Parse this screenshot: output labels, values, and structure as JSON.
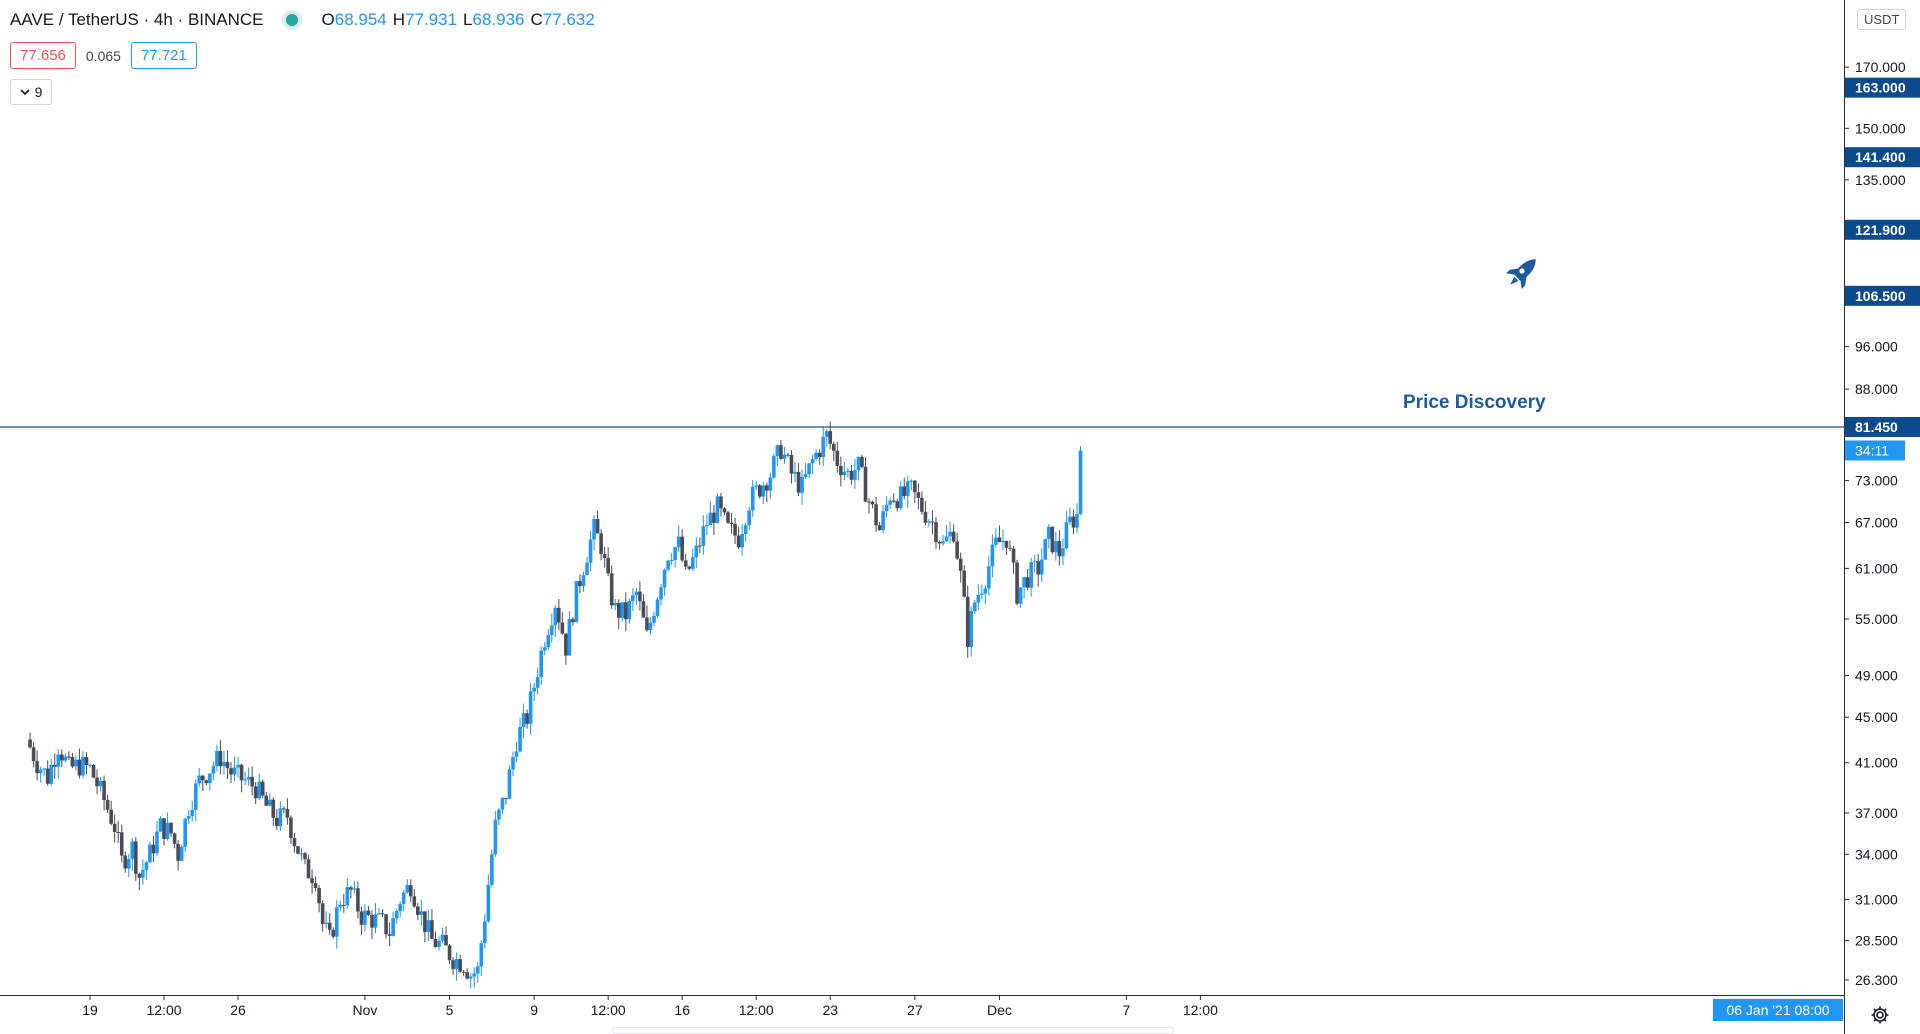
{
  "header": {
    "symbol": "AAVE / TetherUS · 4h · BINANCE",
    "ohlc": [
      {
        "label": "O",
        "value": "68.954"
      },
      {
        "label": "H",
        "value": "77.931"
      },
      {
        "label": "L",
        "value": "68.936"
      },
      {
        "label": "C",
        "value": "77.632"
      }
    ]
  },
  "quote": {
    "sell": "77.656",
    "spread": "0.065",
    "buy": "77.721"
  },
  "indicators_toggle": {
    "count": "9"
  },
  "currency": "USDT",
  "annotation": {
    "text": "Price Discovery",
    "icon": "rocket-icon"
  },
  "settings_icon": "gear-icon",
  "colors": {
    "up": "#2196f3",
    "down": "#4a4c55",
    "label": "#0d4a8c",
    "current": "#2196f3",
    "hline": "#1f4f7e"
  },
  "chart_data": {
    "type": "candlestick",
    "timeframe": "4h",
    "y_scale": "log",
    "ylim": [
      25.5,
      195
    ],
    "y_ticks": [
      {
        "value": 26.3,
        "label": "26.300"
      },
      {
        "value": 28.5,
        "label": "28.500"
      },
      {
        "value": 31,
        "label": "31.000"
      },
      {
        "value": 34,
        "label": "34.000"
      },
      {
        "value": 37,
        "label": "37.000"
      },
      {
        "value": 41,
        "label": "41.000"
      },
      {
        "value": 45,
        "label": "45.000"
      },
      {
        "value": 49,
        "label": "49.000"
      },
      {
        "value": 55,
        "label": "55.000"
      },
      {
        "value": 61,
        "label": "61.000"
      },
      {
        "value": 67,
        "label": "67.000"
      },
      {
        "value": 73,
        "label": "73.000"
      },
      {
        "value": 88,
        "label": "88.000"
      },
      {
        "value": 96,
        "label": "96.000"
      },
      {
        "value": 135,
        "label": "135.000"
      },
      {
        "value": 150,
        "label": "150.000"
      },
      {
        "value": 170,
        "label": "170.000"
      }
    ],
    "price_levels": [
      {
        "value": 163,
        "label": "163.000"
      },
      {
        "value": 141.4,
        "label": "141.400"
      },
      {
        "value": 121.9,
        "label": "121.900"
      },
      {
        "value": 106.5,
        "label": "106.500"
      },
      {
        "value": 81.45,
        "label": "81.450"
      }
    ],
    "horizontal_line": 81.45,
    "countdown": "34:11",
    "countdown_price": 77.632,
    "x_ticks": [
      {
        "date": "2020-10-19",
        "label": "19"
      },
      {
        "date": "2020-10-22T12:00",
        "label": "12:00"
      },
      {
        "date": "2020-10-26",
        "label": "26"
      },
      {
        "date": "2020-11-01",
        "label": "Nov"
      },
      {
        "date": "2020-11-05",
        "label": "5"
      },
      {
        "date": "2020-11-09",
        "label": "9"
      },
      {
        "date": "2020-11-12T12:00",
        "label": "12:00"
      },
      {
        "date": "2020-11-16",
        "label": "16"
      },
      {
        "date": "2020-11-19T12:00",
        "label": "12:00"
      },
      {
        "date": "2020-11-23",
        "label": "23"
      },
      {
        "date": "2020-11-27",
        "label": "27"
      },
      {
        "date": "2020-12-01",
        "label": "Dec"
      },
      {
        "date": "2020-12-07",
        "label": "7"
      },
      {
        "date": "2020-12-10T12:00",
        "label": "12:00"
      }
    ],
    "crosshair_date_label": "06 Jan '21   08:00",
    "price_path": [
      {
        "date": "2020-10-16T00:00",
        "price": 43
      },
      {
        "date": "2020-10-16T12:00",
        "price": 41
      },
      {
        "date": "2020-10-17T00:00",
        "price": 39.8
      },
      {
        "date": "2020-10-17T12:00",
        "price": 42.5
      },
      {
        "date": "2020-10-18T00:00",
        "price": 40.5
      },
      {
        "date": "2020-10-18T12:00",
        "price": 40.8
      },
      {
        "date": "2020-10-19T00:00",
        "price": 40.5
      },
      {
        "date": "2020-10-19T16:00",
        "price": 38
      },
      {
        "date": "2020-10-20T04:00",
        "price": 36
      },
      {
        "date": "2020-10-20T12:00",
        "price": 33.5
      },
      {
        "date": "2020-10-21T00:00",
        "price": 34.5
      },
      {
        "date": "2020-10-21T08:00",
        "price": 32.5
      },
      {
        "date": "2020-10-21T20:00",
        "price": 34
      },
      {
        "date": "2020-10-22T08:00",
        "price": 36
      },
      {
        "date": "2020-10-22T20:00",
        "price": 35.5
      },
      {
        "date": "2020-10-23T04:00",
        "price": 34
      },
      {
        "date": "2020-10-23T16:00",
        "price": 37.5
      },
      {
        "date": "2020-10-24T04:00",
        "price": 39.5
      },
      {
        "date": "2020-10-24T16:00",
        "price": 40.5
      },
      {
        "date": "2020-10-25T04:00",
        "price": 41.5
      },
      {
        "date": "2020-10-25T16:00",
        "price": 40.2
      },
      {
        "date": "2020-10-26T08:00",
        "price": 39.5
      },
      {
        "date": "2020-10-26T20:00",
        "price": 39
      },
      {
        "date": "2020-10-27T08:00",
        "price": 37.5
      },
      {
        "date": "2020-10-27T20:00",
        "price": 36.5
      },
      {
        "date": "2020-10-28T08:00",
        "price": 36.8
      },
      {
        "date": "2020-10-28T16:00",
        "price": 35
      },
      {
        "date": "2020-10-29T04:00",
        "price": 33
      },
      {
        "date": "2020-10-29T16:00",
        "price": 32.5
      },
      {
        "date": "2020-10-30T00:00",
        "price": 29.5
      },
      {
        "date": "2020-10-30T08:00",
        "price": 28.5
      },
      {
        "date": "2020-10-30T20:00",
        "price": 31
      },
      {
        "date": "2020-10-31T08:00",
        "price": 31.5
      },
      {
        "date": "2020-10-31T20:00",
        "price": 30
      },
      {
        "date": "2020-11-01T08:00",
        "price": 29.8
      },
      {
        "date": "2020-11-01T20:00",
        "price": 29.5
      },
      {
        "date": "2020-11-02T04:00",
        "price": 29
      },
      {
        "date": "2020-11-02T16:00",
        "price": 31
      },
      {
        "date": "2020-11-03T04:00",
        "price": 32
      },
      {
        "date": "2020-11-03T16:00",
        "price": 30
      },
      {
        "date": "2020-11-04T04:00",
        "price": 28.5
      },
      {
        "date": "2020-11-04T16:00",
        "price": 28.2
      },
      {
        "date": "2020-11-05T04:00",
        "price": 27.5
      },
      {
        "date": "2020-11-05T16:00",
        "price": 27.2
      },
      {
        "date": "2020-11-06T00:00",
        "price": 26.6
      },
      {
        "date": "2020-11-06T08:00",
        "price": 26.8
      },
      {
        "date": "2020-11-06T16:00",
        "price": 30
      },
      {
        "date": "2020-11-07T04:00",
        "price": 36
      },
      {
        "date": "2020-11-07T16:00",
        "price": 38.5
      },
      {
        "date": "2020-11-08T04:00",
        "price": 43
      },
      {
        "date": "2020-11-08T16:00",
        "price": 45
      },
      {
        "date": "2020-11-09T00:00",
        "price": 48
      },
      {
        "date": "2020-11-09T12:00",
        "price": 53
      },
      {
        "date": "2020-11-10T00:00",
        "price": 57
      },
      {
        "date": "2020-11-10T12:00",
        "price": 52
      },
      {
        "date": "2020-11-11T00:00",
        "price": 58
      },
      {
        "date": "2020-11-11T12:00",
        "price": 63
      },
      {
        "date": "2020-11-11T20:00",
        "price": 66
      },
      {
        "date": "2020-11-12T04:00",
        "price": 64
      },
      {
        "date": "2020-11-12T12:00",
        "price": 59
      },
      {
        "date": "2020-11-12T20:00",
        "price": 56
      },
      {
        "date": "2020-11-13T08:00",
        "price": 55.5
      },
      {
        "date": "2020-11-13T20:00",
        "price": 58
      },
      {
        "date": "2020-11-14T08:00",
        "price": 53
      },
      {
        "date": "2020-11-14T20:00",
        "price": 58
      },
      {
        "date": "2020-11-15T08:00",
        "price": 63
      },
      {
        "date": "2020-11-15T20:00",
        "price": 64
      },
      {
        "date": "2020-11-16T04:00",
        "price": 60
      },
      {
        "date": "2020-11-16T16:00",
        "price": 63
      },
      {
        "date": "2020-11-17T04:00",
        "price": 67
      },
      {
        "date": "2020-11-17T16:00",
        "price": 69
      },
      {
        "date": "2020-11-18T04:00",
        "price": 66
      },
      {
        "date": "2020-11-18T16:00",
        "price": 65
      },
      {
        "date": "2020-11-19T04:00",
        "price": 70
      },
      {
        "date": "2020-11-19T16:00",
        "price": 72
      },
      {
        "date": "2020-11-20T04:00",
        "price": 74
      },
      {
        "date": "2020-11-20T16:00",
        "price": 78
      },
      {
        "date": "2020-11-21T04:00",
        "price": 74
      },
      {
        "date": "2020-11-21T16:00",
        "price": 72
      },
      {
        "date": "2020-11-22T04:00",
        "price": 76
      },
      {
        "date": "2020-11-22T12:00",
        "price": 78
      },
      {
        "date": "2020-11-22T20:00",
        "price": 80
      },
      {
        "date": "2020-11-23T08:00",
        "price": 76
      },
      {
        "date": "2020-11-23T20:00",
        "price": 74
      },
      {
        "date": "2020-11-24T08:00",
        "price": 75
      },
      {
        "date": "2020-11-24T20:00",
        "price": 70
      },
      {
        "date": "2020-11-25T08:00",
        "price": 66
      },
      {
        "date": "2020-11-25T20:00",
        "price": 71
      },
      {
        "date": "2020-11-26T08:00",
        "price": 70.5
      },
      {
        "date": "2020-11-26T20:00",
        "price": 71.5
      },
      {
        "date": "2020-11-27T08:00",
        "price": 69
      },
      {
        "date": "2020-11-27T20:00",
        "price": 67
      },
      {
        "date": "2020-11-28T08:00",
        "price": 64
      },
      {
        "date": "2020-11-28T20:00",
        "price": 66
      },
      {
        "date": "2020-11-29T04:00",
        "price": 60
      },
      {
        "date": "2020-11-29T12:00",
        "price": 53
      },
      {
        "date": "2020-11-29T20:00",
        "price": 57
      },
      {
        "date": "2020-11-30T08:00",
        "price": 60
      },
      {
        "date": "2020-11-30T20:00",
        "price": 64
      },
      {
        "date": "2020-12-01T08:00",
        "price": 65
      },
      {
        "date": "2020-12-01T20:00",
        "price": 58
      },
      {
        "date": "2020-12-02T08:00",
        "price": 60
      },
      {
        "date": "2020-12-02T20:00",
        "price": 61
      },
      {
        "date": "2020-12-03T08:00",
        "price": 65
      },
      {
        "date": "2020-12-03T20:00",
        "price": 63
      },
      {
        "date": "2020-12-04T08:00",
        "price": 67
      },
      {
        "date": "2020-12-04T16:00",
        "price": 68
      },
      {
        "date": "2020-12-04T20:00",
        "price": 77.6
      }
    ]
  }
}
